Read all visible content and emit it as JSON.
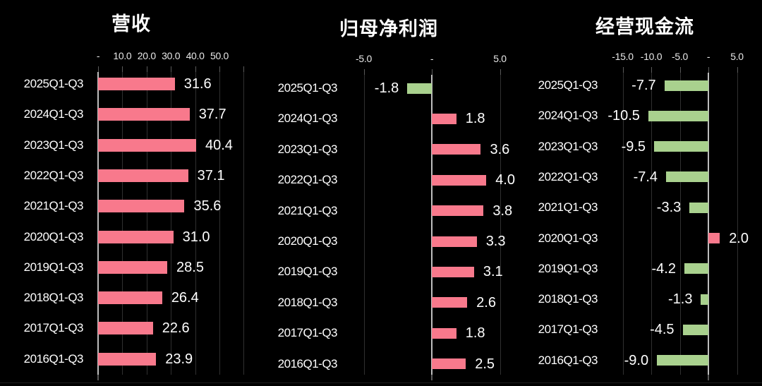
{
  "colors": {
    "background": "#000000",
    "positive_bar": "#F8798C",
    "negative_bar": "#A9D18E",
    "axis_line": "#BDBDBD",
    "gridline": "#303030",
    "tick_mark": "#5A5A5A",
    "title_text": "#FFFFFF",
    "label_text": "#FFFFFF",
    "tick_text": "#E8E8E8"
  },
  "chart_data": [
    {
      "type": "bar",
      "orientation": "horizontal",
      "title": "营收",
      "categories": [
        "2025Q1-Q3",
        "2024Q1-Q3",
        "2023Q1-Q3",
        "2022Q1-Q3",
        "2021Q1-Q3",
        "2020Q1-Q3",
        "2019Q1-Q3",
        "2018Q1-Q3",
        "2017Q1-Q3",
        "2016Q1-Q3"
      ],
      "values": [
        31.6,
        37.7,
        40.4,
        37.1,
        35.6,
        31.0,
        28.5,
        26.4,
        22.6,
        23.9
      ],
      "value_labels": [
        "31.6",
        "37.7",
        "40.4",
        "37.1",
        "35.6",
        "31.0",
        "28.5",
        "26.4",
        "22.6",
        "23.9"
      ],
      "ticks": [
        {
          "value": 0,
          "label": "-"
        },
        {
          "value": 10,
          "label": "10.0"
        },
        {
          "value": 20,
          "label": "20.0"
        },
        {
          "value": 30,
          "label": "30.0"
        },
        {
          "value": 40,
          "label": "40.0"
        },
        {
          "value": 50,
          "label": "50.0"
        },
        {
          "value": 60,
          "label": ""
        }
      ],
      "xlim": [
        0,
        60
      ],
      "grid": true,
      "value_label_position": "outside-end"
    },
    {
      "type": "bar",
      "orientation": "horizontal",
      "title": "归母净利润",
      "categories": [
        "2025Q1-Q3",
        "2024Q1-Q3",
        "2023Q1-Q3",
        "2022Q1-Q3",
        "2021Q1-Q3",
        "2020Q1-Q3",
        "2019Q1-Q3",
        "2018Q1-Q3",
        "2017Q1-Q3",
        "2016Q1-Q3"
      ],
      "values": [
        -1.8,
        1.8,
        3.6,
        4.0,
        3.8,
        3.3,
        3.1,
        2.6,
        1.8,
        2.5
      ],
      "value_labels": [
        "-1.8",
        "1.8",
        "3.6",
        "4.0",
        "3.8",
        "3.3",
        "3.1",
        "2.6",
        "1.8",
        "2.5"
      ],
      "ticks": [
        {
          "value": -5,
          "label": "-5.0"
        },
        {
          "value": 0,
          "label": "-"
        },
        {
          "value": 5,
          "label": "5.0"
        }
      ],
      "xlim": [
        -7,
        6
      ],
      "grid": true,
      "value_label_position": "outside-end"
    },
    {
      "type": "bar",
      "orientation": "horizontal",
      "title": "经营现金流",
      "categories": [
        "2025Q1-Q3",
        "2024Q1-Q3",
        "2023Q1-Q3",
        "2022Q1-Q3",
        "2021Q1-Q3",
        "2020Q1-Q3",
        "2019Q1-Q3",
        "2018Q1-Q3",
        "2017Q1-Q3",
        "2016Q1-Q3"
      ],
      "values": [
        -7.7,
        -10.5,
        -9.5,
        -7.4,
        -3.3,
        2.0,
        -4.2,
        -1.3,
        -4.5,
        -9.0
      ],
      "value_labels": [
        "-7.7",
        "-10.5",
        "-9.5",
        "-7.4",
        "-3.3",
        "2.0",
        "-4.2",
        "-1.3",
        "-4.5",
        "-9.0"
      ],
      "ticks": [
        {
          "value": -15,
          "label": "-15.0"
        },
        {
          "value": -10,
          "label": "-10.0"
        },
        {
          "value": -5,
          "label": "-5.0"
        },
        {
          "value": 0,
          "label": "-"
        },
        {
          "value": 5,
          "label": "5.0"
        }
      ],
      "xlim": [
        -16,
        6
      ],
      "grid": true,
      "value_label_position": "outside-end"
    }
  ]
}
